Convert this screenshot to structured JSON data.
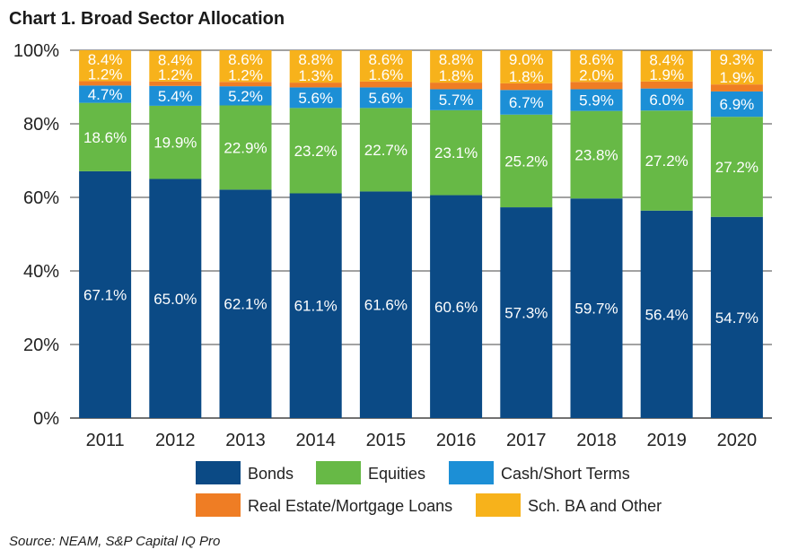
{
  "chart_data": {
    "type": "bar",
    "stacked": true,
    "title": "Chart 1. Broad Sector Allocation",
    "xlabel": "",
    "ylabel": "",
    "ylim": [
      0,
      100
    ],
    "yticks": [
      "0%",
      "20%",
      "40%",
      "60%",
      "80%",
      "100%"
    ],
    "categories": [
      "2011",
      "2012",
      "2013",
      "2014",
      "2015",
      "2016",
      "2017",
      "2018",
      "2019",
      "2020"
    ],
    "series": [
      {
        "name": "Bonds",
        "color": "#0b4a85",
        "values": [
          67.1,
          65.0,
          62.1,
          61.1,
          61.6,
          60.6,
          57.3,
          59.7,
          56.4,
          54.7
        ],
        "labels": [
          "67.1%",
          "65.0%",
          "62.1%",
          "61.1%",
          "61.6%",
          "60.6%",
          "57.3%",
          "59.7%",
          "56.4%",
          "54.7%"
        ]
      },
      {
        "name": "Equities",
        "color": "#67b946",
        "values": [
          18.6,
          19.9,
          22.9,
          23.2,
          22.7,
          23.1,
          25.2,
          23.8,
          27.2,
          27.2
        ],
        "labels": [
          "18.6%",
          "19.9%",
          "22.9%",
          "23.2%",
          "22.7%",
          "23.1%",
          "25.2%",
          "23.8%",
          "27.2%",
          "27.2%"
        ]
      },
      {
        "name": "Cash/Short Terms",
        "color": "#1c8fd6",
        "values": [
          4.7,
          5.4,
          5.2,
          5.6,
          5.6,
          5.7,
          6.7,
          5.9,
          6.0,
          6.9
        ],
        "labels": [
          "4.7%",
          "5.4%",
          "5.2%",
          "5.6%",
          "5.6%",
          "5.7%",
          "6.7%",
          "5.9%",
          "6.0%",
          "6.9%"
        ]
      },
      {
        "name": "Real Estate/Mortgage Loans",
        "color": "#ef7d24",
        "values": [
          1.2,
          1.2,
          1.2,
          1.3,
          1.6,
          1.8,
          1.8,
          2.0,
          1.9,
          1.9
        ],
        "labels": [
          "1.2%",
          "1.2%",
          "1.2%",
          "1.3%",
          "1.6%",
          "1.8%",
          "1.8%",
          "2.0%",
          "1.9%",
          "1.9%"
        ]
      },
      {
        "name": "Sch. BA and Other",
        "color": "#f7b21b",
        "values": [
          8.4,
          8.4,
          8.6,
          8.8,
          8.6,
          8.8,
          9.0,
          8.6,
          8.4,
          9.3
        ],
        "labels": [
          "8.4%",
          "8.4%",
          "8.6%",
          "8.8%",
          "8.6%",
          "8.8%",
          "9.0%",
          "8.6%",
          "8.4%",
          "9.3%"
        ]
      }
    ],
    "legend_position": "bottom",
    "grid": true
  },
  "source": "Source: NEAM, S&P Capital IQ Pro"
}
